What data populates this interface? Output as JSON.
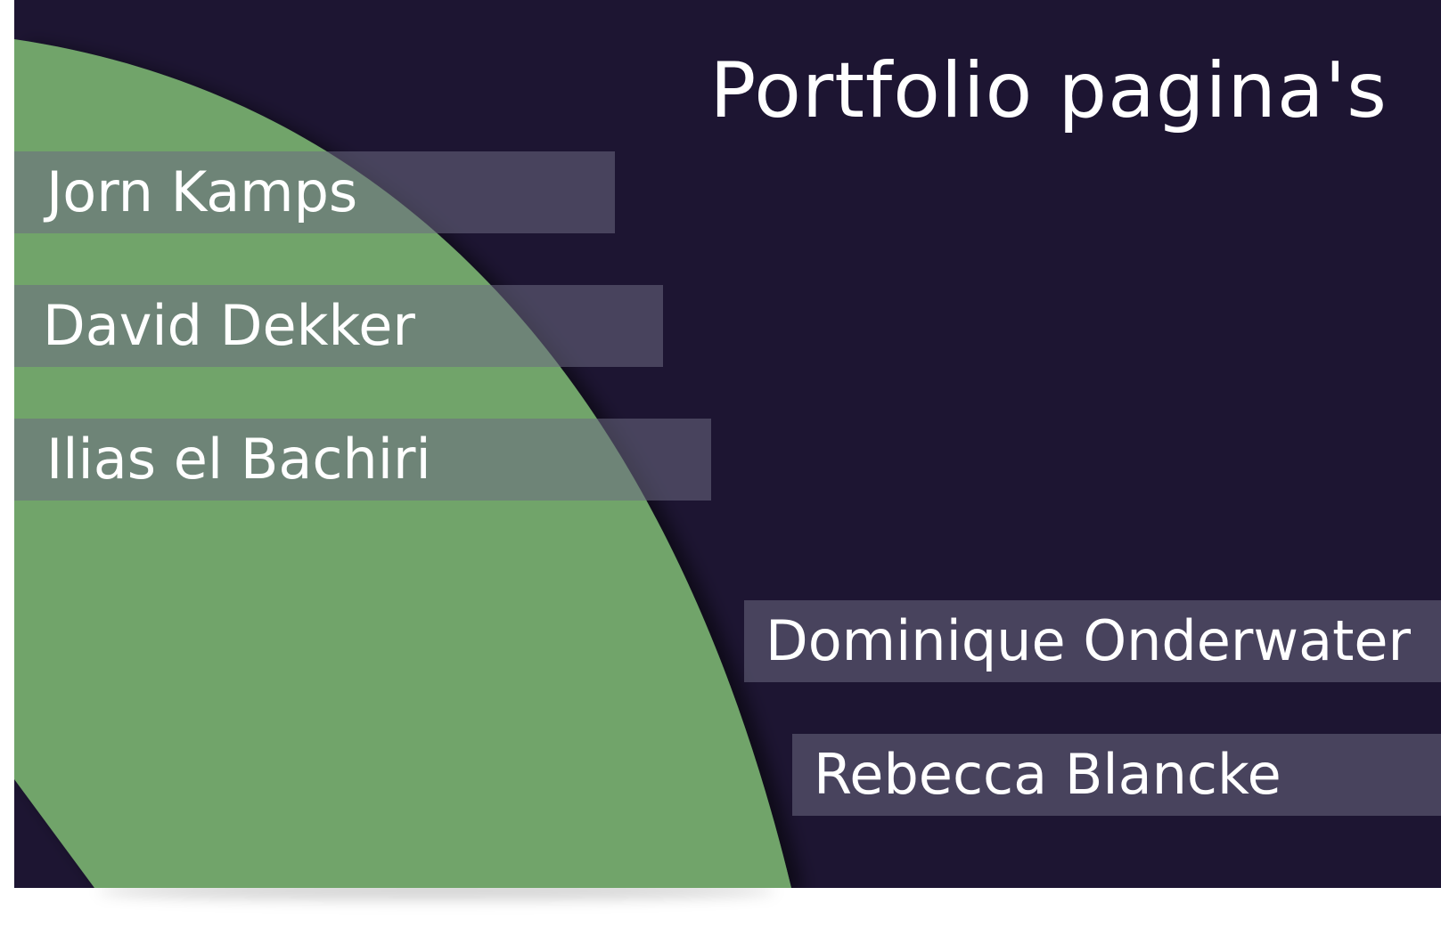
{
  "page": {
    "title": "Portfolio pagina's"
  },
  "portfolio_links": [
    {
      "label": "Jorn Kamps"
    },
    {
      "label": "David Dekker"
    },
    {
      "label": "Ilias el Bachiri"
    },
    {
      "label": "Dominique Onderwater"
    },
    {
      "label": "Rebecca Blancke"
    }
  ],
  "colors": {
    "background": "#1d1532",
    "accent_shape": "#71a46a",
    "link_bar": "#4a4560",
    "text": "#ffffff"
  }
}
